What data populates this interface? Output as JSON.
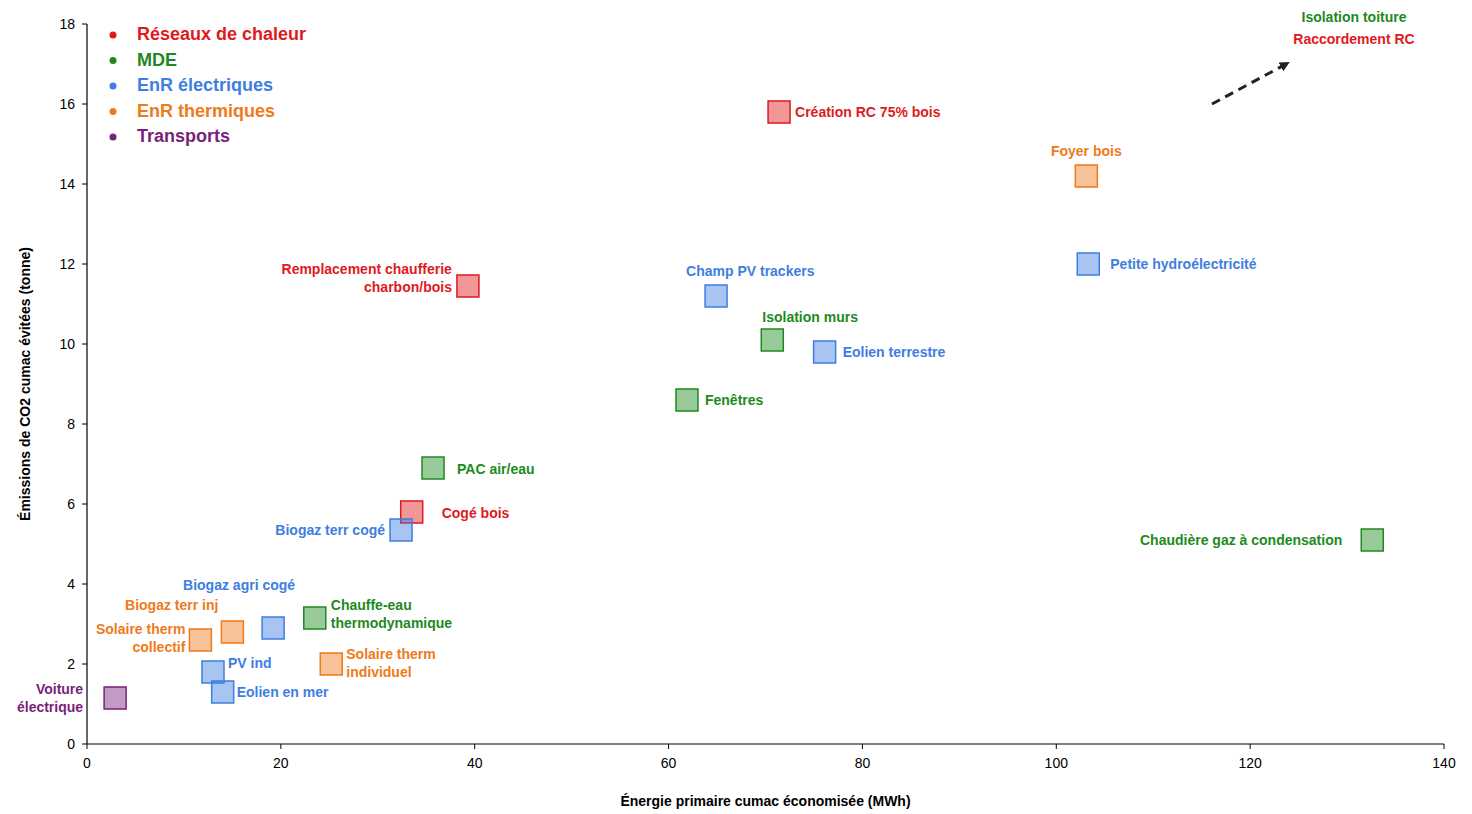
{
  "chart_data": {
    "type": "scatter",
    "xlabel": "Énergie primaire cumac économisée (MWh)",
    "ylabel": "Émissions de CO2 cumac évitées (tonne)",
    "xlim": [
      0,
      140
    ],
    "ylim": [
      0,
      18
    ],
    "xticks": [
      0,
      20,
      40,
      60,
      80,
      100,
      120,
      140
    ],
    "yticks": [
      0,
      2,
      4,
      6,
      8,
      10,
      12,
      14,
      16,
      18
    ],
    "grid": false,
    "legend": "upper left",
    "marker": "square",
    "series": [
      {
        "name": "Réseaux de chaleur",
        "color": "#e0191d",
        "labels": [
          "Création RC 75% bois",
          "Remplacement chaufferie charbon/bois",
          "Cogé bois"
        ],
        "x": [
          71.4,
          39.3,
          33.5
        ],
        "values": [
          15.8,
          11.45,
          5.8
        ]
      },
      {
        "name": "MDE",
        "color": "#1d8a1d",
        "labels": [
          "Isolation murs",
          "Fenêtres",
          "PAC air/eau",
          "Chauffe-eau thermodynamique",
          "Chaudière gaz à condensation"
        ],
        "x": [
          70.7,
          61.9,
          35.7,
          23.5,
          132.6
        ],
        "values": [
          10.1,
          8.6,
          6.9,
          3.15,
          5.1
        ]
      },
      {
        "name": "EnR électriques",
        "color": "#3d7ee0",
        "labels": [
          "Champ PV trackers",
          "Eolien terrestre",
          "Petite hydroélectricité",
          "Biogaz terr cogé",
          "Biogaz agri cogé",
          "PV ind",
          "Eolien en mer"
        ],
        "x": [
          64.9,
          76.1,
          103.3,
          32.4,
          19.2,
          13.0,
          14.0
        ],
        "values": [
          11.2,
          9.8,
          12.0,
          5.35,
          2.9,
          1.8,
          1.3
        ]
      },
      {
        "name": "EnR thermiques",
        "color": "#f07a1a",
        "labels": [
          "Foyer bois",
          "Biogaz terr inj",
          "Solaire therm collectif",
          "Solaire therm individuel"
        ],
        "x": [
          103.1,
          15.0,
          11.7,
          25.2
        ],
        "values": [
          14.2,
          2.8,
          2.6,
          2.0
        ]
      },
      {
        "name": "Transports",
        "color": "#7a1f7a",
        "labels": [
          "Voiture électrique"
        ],
        "x": [
          2.9
        ],
        "values": [
          1.15
        ]
      }
    ],
    "annotations": [
      {
        "text": "Isolation toiture",
        "color": "#1d8a1d"
      },
      {
        "text": "Raccordement RC",
        "color": "#e0191d"
      }
    ]
  }
}
